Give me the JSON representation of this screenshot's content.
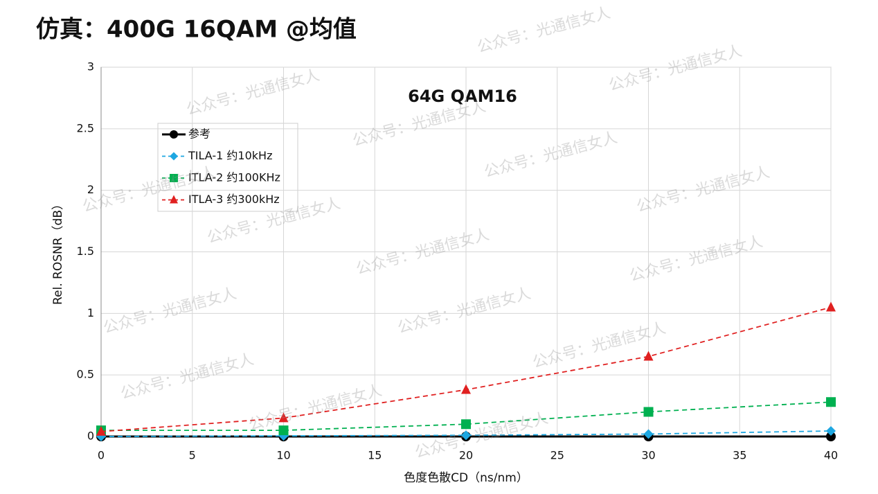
{
  "page_title": "仿真：400G 16QAM @均值",
  "watermark": "公众号：光通信女人",
  "chart_data": {
    "type": "line",
    "title": "64G QAM16",
    "x_label": "色度色散CD（ns/nm）",
    "y_label": "Rel. ROSNR（dB）",
    "x": [
      0,
      10,
      20,
      30,
      40
    ],
    "xlim": [
      0,
      40
    ],
    "xticks": [
      0,
      5,
      10,
      15,
      20,
      25,
      30,
      35,
      40
    ],
    "ylim": [
      0,
      3
    ],
    "yticks": [
      0,
      0.5,
      1,
      1.5,
      2,
      2.5,
      3
    ],
    "grid": true,
    "series": [
      {
        "name": "参考",
        "color": "#000000",
        "marker": "circle",
        "line_style": "solid",
        "values": [
          0,
          0,
          0,
          0,
          0
        ]
      },
      {
        "name": "TILA-1 约10kHz",
        "color": "#1ea7e1",
        "marker": "diamond",
        "line_style": "dashed",
        "values": [
          0,
          0.005,
          0.01,
          0.02,
          0.045
        ]
      },
      {
        "name": "ITLA-2 约100KHz",
        "color": "#00b050",
        "marker": "square",
        "line_style": "dashed",
        "values": [
          0.05,
          0.05,
          0.1,
          0.2,
          0.28
        ]
      },
      {
        "name": "ITLA-3 约300kHz",
        "color": "#e02020",
        "marker": "triangle",
        "line_style": "dashed",
        "values": [
          0.04,
          0.15,
          0.38,
          0.65,
          1.05
        ]
      }
    ]
  }
}
